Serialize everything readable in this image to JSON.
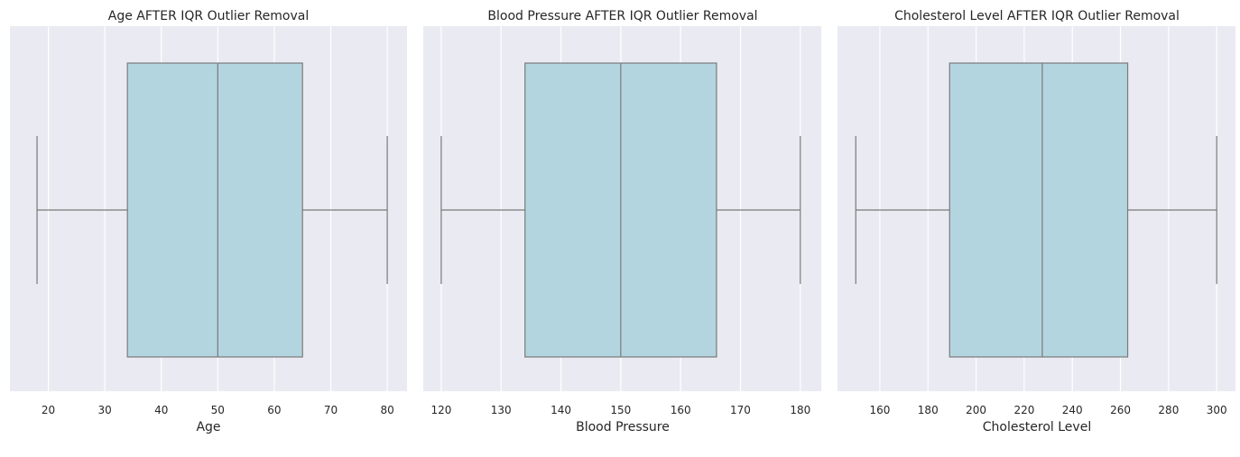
{
  "chart_data": [
    {
      "type": "boxplot",
      "title": "Age AFTER IQR Outlier Removal",
      "xlabel": "Age",
      "xlim": [
        13.2,
        83.5
      ],
      "xticks": [
        20,
        30,
        40,
        50,
        60,
        70,
        80
      ],
      "whisker_low": 18,
      "q1": 34,
      "median": 50,
      "q3": 65,
      "whisker_high": 80,
      "grid": true,
      "box_color": "#b3d5df",
      "line_color": "#7a7a7a"
    },
    {
      "type": "boxplot",
      "title": "Blood Pressure AFTER IQR Outlier Removal",
      "xlabel": "Blood Pressure",
      "xlim": [
        117,
        183.5
      ],
      "xticks": [
        120,
        130,
        140,
        150,
        160,
        170,
        180
      ],
      "whisker_low": 120,
      "q1": 134,
      "median": 150,
      "q3": 166,
      "whisker_high": 180,
      "grid": true,
      "box_color": "#b3d5df",
      "line_color": "#7a7a7a"
    },
    {
      "type": "boxplot",
      "title": "Cholesterol Level AFTER IQR Outlier Removal",
      "xlabel": "Cholesterol Level",
      "xlim": [
        142.4,
        307.8
      ],
      "xticks": [
        160,
        180,
        200,
        220,
        240,
        260,
        280,
        300
      ],
      "whisker_low": 150,
      "q1": 189,
      "median": 227.5,
      "q3": 263,
      "whisker_high": 300,
      "grid": true,
      "box_color": "#b3d5df",
      "line_color": "#7a7a7a"
    }
  ],
  "style": {
    "panel_bg": "#eaeaf2",
    "grid_color": "#ffffff"
  }
}
